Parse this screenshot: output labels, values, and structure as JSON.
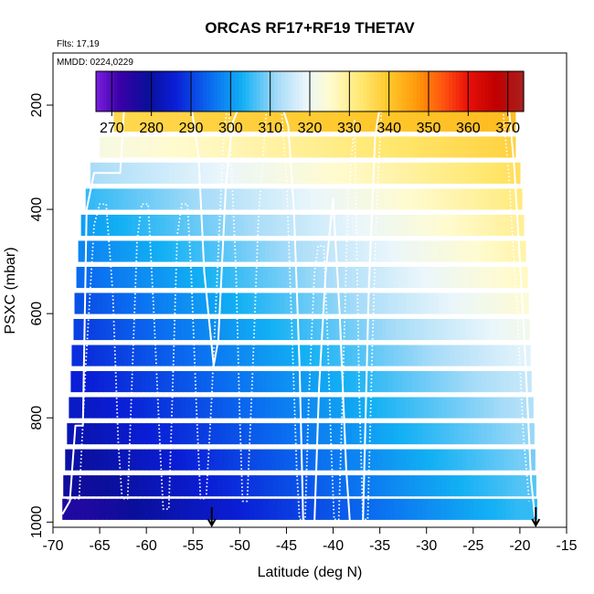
{
  "chart_data": {
    "type": "heatmap",
    "title": "ORCAS RF17+RF19 THETAV",
    "flights_label": "Flts: 17,19",
    "dates_label": "MMDD: 0224,0229",
    "xlabel": "Latitude (deg N)",
    "ylabel": "PSXC (mbar)",
    "xlim": [
      -70,
      -15
    ],
    "ylim": [
      1010,
      100
    ],
    "y_reversed": true,
    "x_ticks": [
      -70,
      -65,
      -60,
      -55,
      -50,
      -45,
      -40,
      -35,
      -30,
      -25,
      -20,
      -15
    ],
    "y_ticks": [
      200,
      400,
      600,
      800,
      1000
    ],
    "colorbar": {
      "position": "top",
      "range": [
        266,
        374
      ],
      "ticks": [
        270,
        280,
        290,
        300,
        310,
        320,
        330,
        340,
        350,
        360,
        370
      ],
      "stops": [
        [
          266,
          "#7a1fe0"
        ],
        [
          272,
          "#3a00a8"
        ],
        [
          279,
          "#0a0f9a"
        ],
        [
          286,
          "#0a1ed6"
        ],
        [
          295,
          "#0a6cf0"
        ],
        [
          303,
          "#12b0f4"
        ],
        [
          312,
          "#a8dcf8"
        ],
        [
          319,
          "#eaf6fb"
        ],
        [
          325,
          "#fffbd0"
        ],
        [
          333,
          "#ffe870"
        ],
        [
          340,
          "#ffc72a"
        ],
        [
          347,
          "#ff9a0a"
        ],
        [
          354,
          "#ff5010"
        ],
        [
          360,
          "#e81008"
        ],
        [
          367,
          "#c00000"
        ],
        [
          374,
          "#a82020"
        ]
      ]
    },
    "field": {
      "description_levels_mbar": [
        180,
        230,
        280,
        330,
        380,
        430,
        480,
        530,
        580,
        630,
        680,
        730,
        780,
        830,
        880,
        930,
        975
      ],
      "level_lat_bounds": [
        [
          -62.5,
          -21.0
        ],
        [
          -63.5,
          -20.5
        ],
        [
          -65.0,
          -20.5
        ],
        [
          -66.0,
          -20.0
        ],
        [
          -66.5,
          -19.8
        ],
        [
          -67.0,
          -19.6
        ],
        [
          -67.3,
          -19.4
        ],
        [
          -67.5,
          -19.2
        ],
        [
          -67.7,
          -19.1
        ],
        [
          -67.8,
          -19.0
        ],
        [
          -68.0,
          -18.9
        ],
        [
          -68.1,
          -18.8
        ],
        [
          -68.3,
          -18.6
        ],
        [
          -68.5,
          -18.5
        ],
        [
          -68.7,
          -18.4
        ],
        [
          -68.9,
          -18.3
        ],
        [
          -69.0,
          -18.2
        ]
      ],
      "theta_west_lat": -66,
      "theta_east_lat": -20,
      "theta_west": [
        356,
        336,
        322,
        312,
        305,
        301,
        298,
        295,
        292,
        290,
        288,
        286,
        284,
        282,
        280,
        278,
        276
      ],
      "theta_east": [
        346,
        342,
        338,
        335,
        332,
        330,
        328,
        326,
        324,
        321,
        318,
        315,
        313,
        311,
        309,
        307,
        305
      ]
    },
    "series": [
      {
        "style": "solid",
        "points": [
          [
            -69,
            985
          ],
          [
            -68.2,
            960
          ],
          [
            -67.6,
            815
          ],
          [
            -66.8,
            815
          ],
          [
            -66.4,
            400
          ],
          [
            -65.6,
            330
          ],
          [
            -62.8,
            330
          ],
          [
            -62.3,
            180
          ],
          [
            -60,
            180
          ],
          [
            -56,
            180
          ],
          [
            -55.2,
            200
          ],
          [
            -54.4,
            300
          ],
          [
            -53.8,
            520
          ],
          [
            -52.8,
            700
          ],
          [
            -52.3,
            650
          ],
          [
            -51.5,
            360
          ],
          [
            -50.8,
            235
          ],
          [
            -50,
            200
          ],
          [
            -45.5,
            200
          ],
          [
            -44.8,
            240
          ],
          [
            -44.2,
            400
          ],
          [
            -43.6,
            700
          ],
          [
            -43.2,
            1000
          ],
          [
            -42,
            1000
          ],
          [
            -41.5,
            740
          ],
          [
            -40.8,
            520
          ],
          [
            -40,
            380
          ],
          [
            -39.3,
            600
          ],
          [
            -38.6,
            900
          ],
          [
            -38.2,
            1000
          ],
          [
            -36.8,
            1000
          ],
          [
            -36.2,
            560
          ],
          [
            -35.5,
            260
          ],
          [
            -34.8,
            180
          ],
          [
            -22,
            180
          ],
          [
            -21.2,
            200
          ],
          [
            -20.6,
            320
          ],
          [
            -19.6,
            620
          ],
          [
            -18.8,
            920
          ],
          [
            -18.4,
            990
          ]
        ]
      },
      {
        "style": "dotted",
        "points": [
          [
            -68.5,
            955
          ],
          [
            -67.2,
            955
          ],
          [
            -66.5,
            700
          ],
          [
            -65.6,
            430
          ],
          [
            -65,
            390
          ],
          [
            -64.3,
            390
          ],
          [
            -63.6,
            560
          ],
          [
            -63,
            850
          ],
          [
            -62.6,
            955
          ],
          [
            -62,
            955
          ],
          [
            -61.6,
            760
          ],
          [
            -61,
            460
          ],
          [
            -60.5,
            390
          ],
          [
            -59.8,
            390
          ],
          [
            -59.2,
            600
          ],
          [
            -58.5,
            870
          ],
          [
            -58.2,
            975
          ],
          [
            -57.6,
            975
          ],
          [
            -57.2,
            750
          ],
          [
            -56.7,
            450
          ],
          [
            -56.2,
            390
          ],
          [
            -55.6,
            390
          ],
          [
            -55.2,
            520
          ],
          [
            -54.6,
            800
          ],
          [
            -54.2,
            955
          ],
          [
            -53.6,
            955
          ],
          [
            -53,
            760
          ],
          [
            -52.5,
            560
          ],
          [
            -51.7,
            250
          ],
          [
            -51.2,
            190
          ],
          [
            -50.4,
            520
          ],
          [
            -50,
            800
          ],
          [
            -49.7,
            960
          ],
          [
            -49.2,
            960
          ],
          [
            -48.6,
            700
          ],
          [
            -48,
            420
          ],
          [
            -47.2,
            220
          ],
          [
            -46.6,
            190
          ],
          [
            -45.6,
            190
          ],
          [
            -45,
            340
          ],
          [
            -44.4,
            640
          ],
          [
            -43.9,
            900
          ],
          [
            -43.6,
            995
          ],
          [
            -43,
            995
          ],
          [
            -42.6,
            760
          ],
          [
            -42,
            520
          ],
          [
            -41.6,
            470
          ],
          [
            -41,
            470
          ],
          [
            -40.6,
            640
          ],
          [
            -40.2,
            860
          ],
          [
            -39.9,
            995
          ],
          [
            -39.4,
            995
          ],
          [
            -39,
            760
          ],
          [
            -38.4,
            380
          ],
          [
            -37.7,
            230
          ],
          [
            -37.2,
            760
          ],
          [
            -36.8,
            995
          ],
          [
            -36.3,
            995
          ],
          [
            -35.8,
            660
          ],
          [
            -35.3,
            380
          ],
          [
            -34.8,
            200
          ],
          [
            -34.2,
            180
          ],
          [
            -22.5,
            180
          ],
          [
            -21.8,
            210
          ],
          [
            -21.2,
            330
          ],
          [
            -20.4,
            560
          ],
          [
            -19.6,
            840
          ],
          [
            -19,
            960
          ]
        ]
      }
    ],
    "takeoff_landing_markers_lat": [
      -53,
      -18.3
    ]
  }
}
